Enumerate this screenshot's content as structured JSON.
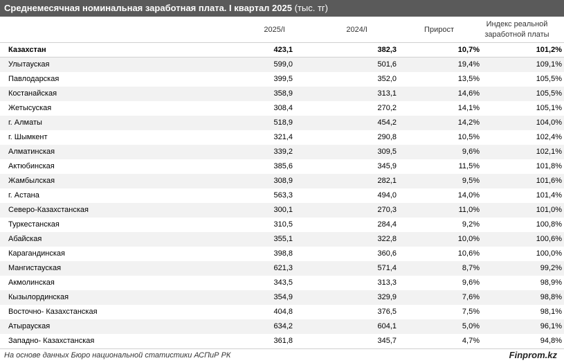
{
  "title": {
    "main": "Среднемесячная номинальная заработная плата. I квартал 2025",
    "unit": "(тыс. тг)"
  },
  "columns": {
    "c1": "2025/I",
    "c2": "2024/I",
    "c3": "Прирост",
    "c4_line1": "Индекс реальной",
    "c4_line2": "заработной платы"
  },
  "rows": [
    {
      "region": "Казахстан",
      "v2025": "423,1",
      "v2024": "382,3",
      "growth": "10,7%",
      "index": "101,2%"
    },
    {
      "region": "Улытауская",
      "v2025": "599,0",
      "v2024": "501,6",
      "growth": "19,4%",
      "index": "109,1%"
    },
    {
      "region": "Павлодарская",
      "v2025": "399,5",
      "v2024": "352,0",
      "growth": "13,5%",
      "index": "105,5%"
    },
    {
      "region": "Костанайская",
      "v2025": "358,9",
      "v2024": "313,1",
      "growth": "14,6%",
      "index": "105,5%"
    },
    {
      "region": "Жетысуская",
      "v2025": "308,4",
      "v2024": "270,2",
      "growth": "14,1%",
      "index": "105,1%"
    },
    {
      "region": "г. Алматы",
      "v2025": "518,9",
      "v2024": "454,2",
      "growth": "14,2%",
      "index": "104,0%"
    },
    {
      "region": "г. Шымкент",
      "v2025": "321,4",
      "v2024": "290,8",
      "growth": "10,5%",
      "index": "102,4%"
    },
    {
      "region": "Алматинская",
      "v2025": "339,2",
      "v2024": "309,5",
      "growth": "9,6%",
      "index": "102,1%"
    },
    {
      "region": "Актюбинская",
      "v2025": "385,6",
      "v2024": "345,9",
      "growth": "11,5%",
      "index": "101,8%"
    },
    {
      "region": "Жамбылская",
      "v2025": "308,9",
      "v2024": "282,1",
      "growth": "9,5%",
      "index": "101,6%"
    },
    {
      "region": "г. Астана",
      "v2025": "563,3",
      "v2024": "494,0",
      "growth": "14,0%",
      "index": "101,4%"
    },
    {
      "region": "Северо-Казахстанская",
      "v2025": "300,1",
      "v2024": "270,3",
      "growth": "11,0%",
      "index": "101,0%"
    },
    {
      "region": "Туркестанская",
      "v2025": "310,5",
      "v2024": "284,4",
      "growth": "9,2%",
      "index": "100,8%"
    },
    {
      "region": "Абайская",
      "v2025": "355,1",
      "v2024": "322,8",
      "growth": "10,0%",
      "index": "100,6%"
    },
    {
      "region": "Карагандинская",
      "v2025": "398,8",
      "v2024": "360,6",
      "growth": "10,6%",
      "index": "100,0%"
    },
    {
      "region": "Мангистауская",
      "v2025": "621,3",
      "v2024": "571,4",
      "growth": "8,7%",
      "index": "99,2%"
    },
    {
      "region": "Акмолинская",
      "v2025": "343,5",
      "v2024": "313,3",
      "growth": "9,6%",
      "index": "98,9%"
    },
    {
      "region": "Кызылординская",
      "v2025": "354,9",
      "v2024": "329,9",
      "growth": "7,6%",
      "index": "98,8%"
    },
    {
      "region": "Восточно- Казахстанская",
      "v2025": "404,8",
      "v2024": "376,5",
      "growth": "7,5%",
      "index": "98,1%"
    },
    {
      "region": "Атырауская",
      "v2025": "634,2",
      "v2024": "604,1",
      "growth": "5,0%",
      "index": "96,1%"
    },
    {
      "region": "Западно- Казахстанская",
      "v2025": "361,8",
      "v2024": "345,7",
      "growth": "4,7%",
      "index": "94,8%"
    }
  ],
  "footer": {
    "source": "На основе данных Бюро национальной статистики АСПиР РК",
    "brand": "Finprom.kz"
  },
  "colors": {
    "title_bg": "#5a5a5a",
    "stripe": "#f2f2f2"
  }
}
